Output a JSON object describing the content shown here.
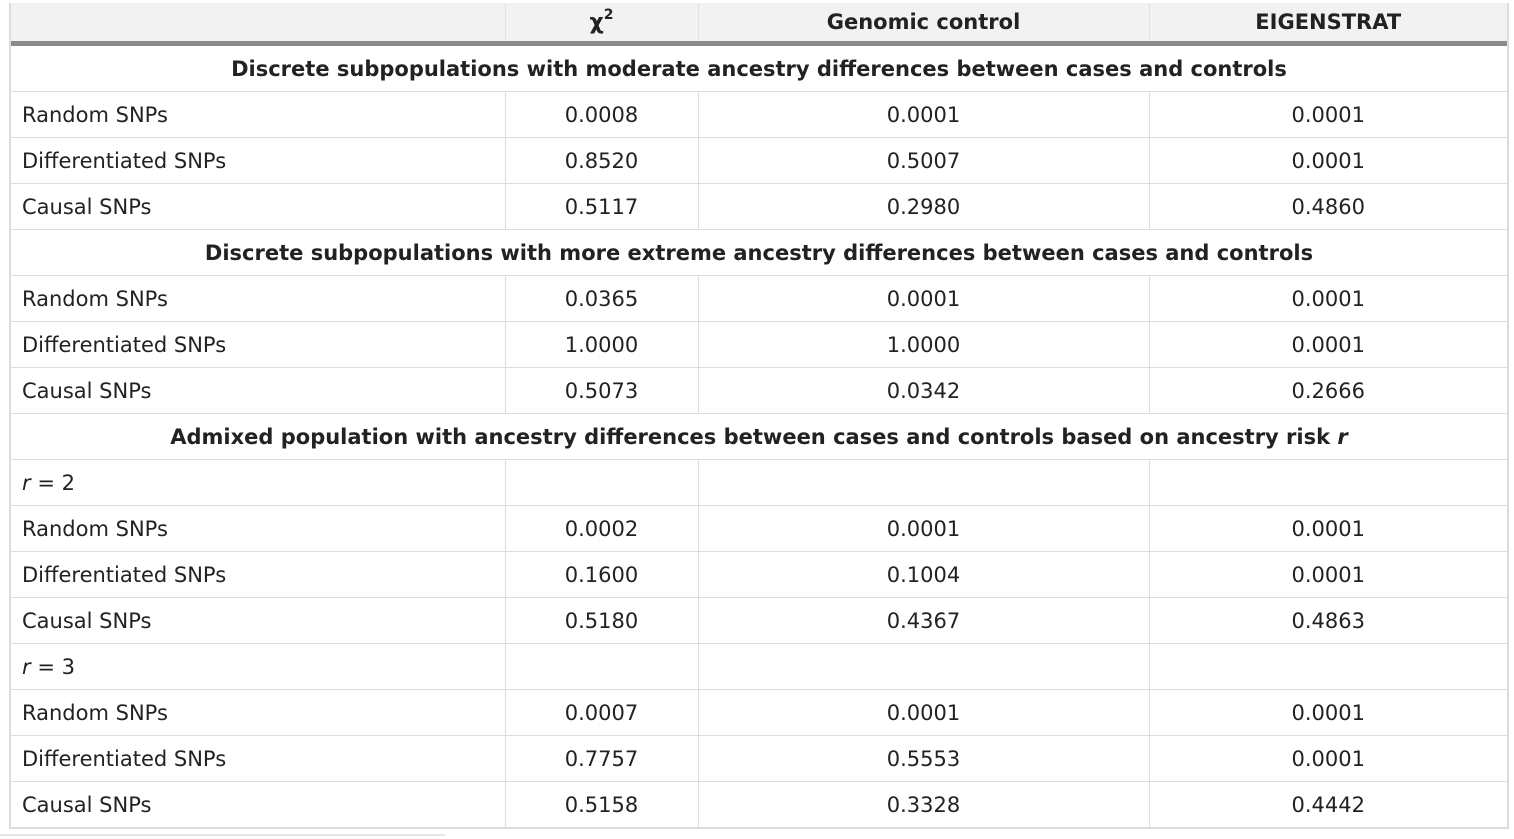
{
  "header": {
    "col0": "",
    "col1_symbol": "χ",
    "col1_sup": "2",
    "col2": "Genomic control",
    "col3": "EIGENSTRAT"
  },
  "sections": [
    {
      "title": "Discrete subpopulations with moderate ancestry differences between cases and controls",
      "rows": [
        {
          "label": "Random SNPs",
          "chi2": "0.0008",
          "gc": "0.0001",
          "eig": "0.0001"
        },
        {
          "label": "Differentiated SNPs",
          "chi2": "0.8520",
          "gc": "0.5007",
          "eig": "0.0001"
        },
        {
          "label": "Causal SNPs",
          "chi2": "0.5117",
          "gc": "0.2980",
          "eig": "0.4860"
        }
      ]
    },
    {
      "title": "Discrete subpopulations with more extreme ancestry differences between cases and controls",
      "rows": [
        {
          "label": "Random SNPs",
          "chi2": "0.0365",
          "gc": "0.0001",
          "eig": "0.0001"
        },
        {
          "label": "Differentiated SNPs",
          "chi2": "1.0000",
          "gc": "1.0000",
          "eig": "0.0001"
        },
        {
          "label": "Causal SNPs",
          "chi2": "0.5073",
          "gc": "0.0342",
          "eig": "0.2666"
        }
      ]
    },
    {
      "title": "Admixed population with ancestry differences between cases and controls based on ancestry risk",
      "title_var": "r",
      "subgroups": [
        {
          "var": "r",
          "value": " = 2",
          "rows": [
            {
              "label": "Random SNPs",
              "chi2": "0.0002",
              "gc": "0.0001",
              "eig": "0.0001"
            },
            {
              "label": "Differentiated SNPs",
              "chi2": "0.1600",
              "gc": "0.1004",
              "eig": "0.0001"
            },
            {
              "label": "Causal SNPs",
              "chi2": "0.5180",
              "gc": "0.4367",
              "eig": "0.4863"
            }
          ]
        },
        {
          "var": "r",
          "value": " = 3",
          "rows": [
            {
              "label": "Random SNPs",
              "chi2": "0.0007",
              "gc": "0.0001",
              "eig": "0.0001"
            },
            {
              "label": "Differentiated SNPs",
              "chi2": "0.7757",
              "gc": "0.5553",
              "eig": "0.0001"
            },
            {
              "label": "Causal SNPs",
              "chi2": "0.5158",
              "gc": "0.3328",
              "eig": "0.4442"
            }
          ]
        }
      ]
    }
  ]
}
